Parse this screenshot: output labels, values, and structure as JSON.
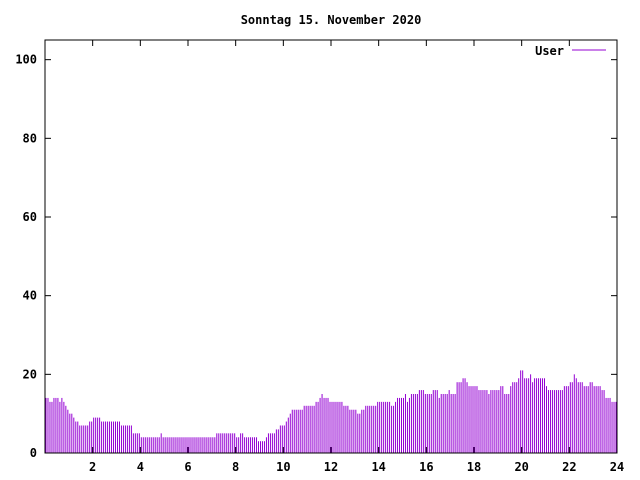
{
  "chart_data": {
    "type": "bar",
    "title": "Sonntag 15. November 2020",
    "xlabel": "",
    "ylabel": "",
    "xlim": [
      0,
      24
    ],
    "ylim": [
      0,
      105
    ],
    "x_ticks": [
      2,
      4,
      6,
      8,
      10,
      12,
      14,
      16,
      18,
      20,
      22,
      24
    ],
    "y_ticks": [
      0,
      20,
      40,
      60,
      80,
      100
    ],
    "legend_position": "top-right",
    "grid": false,
    "bar_interval_hours": 0.0833333,
    "series": [
      {
        "name": "User",
        "color": "#9400d3",
        "values": [
          14,
          14,
          13,
          13,
          14,
          14,
          14,
          13,
          14,
          13,
          12,
          11,
          10,
          10,
          9,
          8,
          8,
          7,
          7,
          7,
          7,
          7,
          8,
          8,
          9,
          9,
          9,
          9,
          8,
          8,
          8,
          8,
          8,
          8,
          8,
          8,
          8,
          8,
          7,
          7,
          7,
          7,
          7,
          7,
          5,
          5,
          5,
          5,
          4,
          4,
          4,
          4,
          4,
          4,
          4,
          4,
          4,
          4,
          5,
          4,
          4,
          4,
          4,
          4,
          4,
          4,
          4,
          4,
          4,
          4,
          4,
          4,
          4,
          4,
          4,
          4,
          4,
          4,
          4,
          4,
          4,
          4,
          4,
          4,
          4,
          4,
          5,
          5,
          5,
          5,
          5,
          5,
          5,
          5,
          5,
          5,
          4,
          4,
          5,
          5,
          4,
          4,
          4,
          4,
          4,
          4,
          4,
          3,
          3,
          3,
          3,
          4,
          5,
          5,
          5,
          5,
          6,
          6,
          7,
          7,
          7,
          8,
          9,
          10,
          11,
          11,
          11,
          11,
          11,
          11,
          12,
          12,
          12,
          12,
          12,
          12,
          13,
          13,
          14,
          15,
          14,
          14,
          14,
          13,
          13,
          13,
          13,
          13,
          13,
          13,
          12,
          12,
          12,
          11,
          11,
          11,
          11,
          10,
          10,
          11,
          11,
          12,
          12,
          12,
          12,
          12,
          12,
          13,
          13,
          13,
          13,
          13,
          13,
          13,
          12,
          12,
          13,
          14,
          14,
          14,
          14,
          15,
          13,
          14,
          15,
          15,
          15,
          15,
          16,
          16,
          16,
          15,
          15,
          15,
          15,
          16,
          16,
          16,
          14,
          15,
          15,
          15,
          15,
          16,
          15,
          15,
          15,
          18,
          18,
          18,
          19,
          19,
          18,
          17,
          17,
          17,
          17,
          17,
          16,
          16,
          16,
          16,
          16,
          15,
          16,
          16,
          16,
          16,
          16,
          17,
          17,
          15,
          15,
          15,
          17,
          18,
          18,
          18,
          19,
          21,
          21,
          19,
          19,
          19,
          20,
          18,
          19,
          19,
          19,
          19,
          19,
          19,
          17,
          16,
          16,
          16,
          16,
          16,
          16,
          16,
          16,
          17,
          17,
          17,
          18,
          18,
          20,
          19,
          18,
          18,
          18,
          17,
          17,
          17,
          18,
          18,
          17,
          17,
          17,
          17,
          16,
          16,
          14,
          14,
          14,
          13,
          13,
          13
        ]
      }
    ]
  }
}
